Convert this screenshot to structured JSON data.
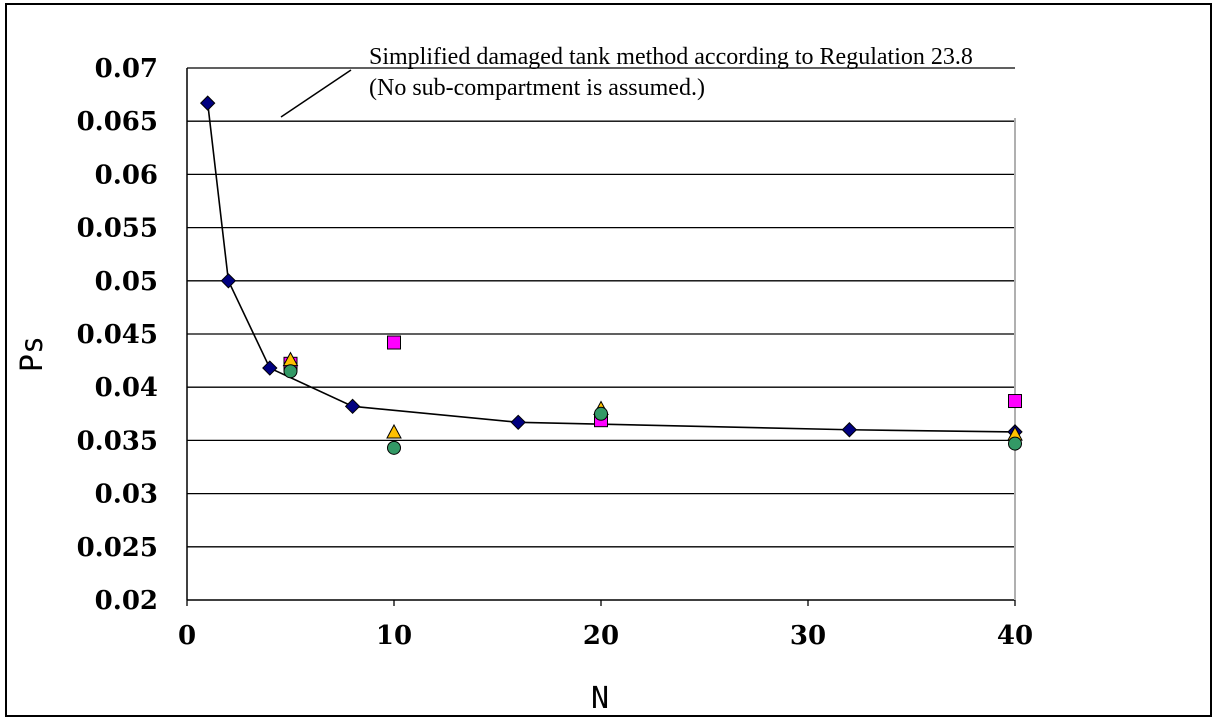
{
  "chart_data": {
    "type": "scatter",
    "title": "",
    "xlabel": "N",
    "ylabel": "Ps",
    "xlim": [
      0,
      40
    ],
    "ylim": [
      0.02,
      0.07
    ],
    "x_ticks": [
      "0",
      "10",
      "20",
      "30",
      "40"
    ],
    "y_ticks": [
      "0.02",
      "0.025",
      "0.03",
      "0.035",
      "0.04",
      "0.045",
      "0.05",
      "0.055",
      "0.06",
      "0.065",
      "0.07"
    ],
    "grid": "horizontal",
    "annotation": {
      "line1": "Simplified damaged tank method according to Regulation 23.8",
      "line2": "(No sub-compartment is assumed.)"
    },
    "series": [
      {
        "marker": "diamond",
        "color": "#000080",
        "connected": true,
        "points": [
          [
            1,
            0.0667
          ],
          [
            2,
            0.05
          ],
          [
            4,
            0.0418
          ],
          [
            8,
            0.0382
          ],
          [
            16,
            0.0367
          ],
          [
            32,
            0.036
          ],
          [
            40,
            0.0358
          ]
        ]
      },
      {
        "marker": "square",
        "color": "#ff00ff",
        "connected": false,
        "points": [
          [
            5,
            0.0422
          ],
          [
            10,
            0.0442
          ],
          [
            20,
            0.0369
          ],
          [
            40,
            0.0387
          ]
        ]
      },
      {
        "marker": "triangle",
        "color": "#ffc000",
        "connected": false,
        "points": [
          [
            5,
            0.0425
          ],
          [
            10,
            0.0357
          ],
          [
            20,
            0.0379
          ],
          [
            40,
            0.0355
          ]
        ]
      },
      {
        "marker": "circle",
        "color": "#339966",
        "connected": false,
        "points": [
          [
            5,
            0.0415
          ],
          [
            10,
            0.0343
          ],
          [
            20,
            0.0375
          ],
          [
            40,
            0.0347
          ]
        ]
      }
    ]
  }
}
